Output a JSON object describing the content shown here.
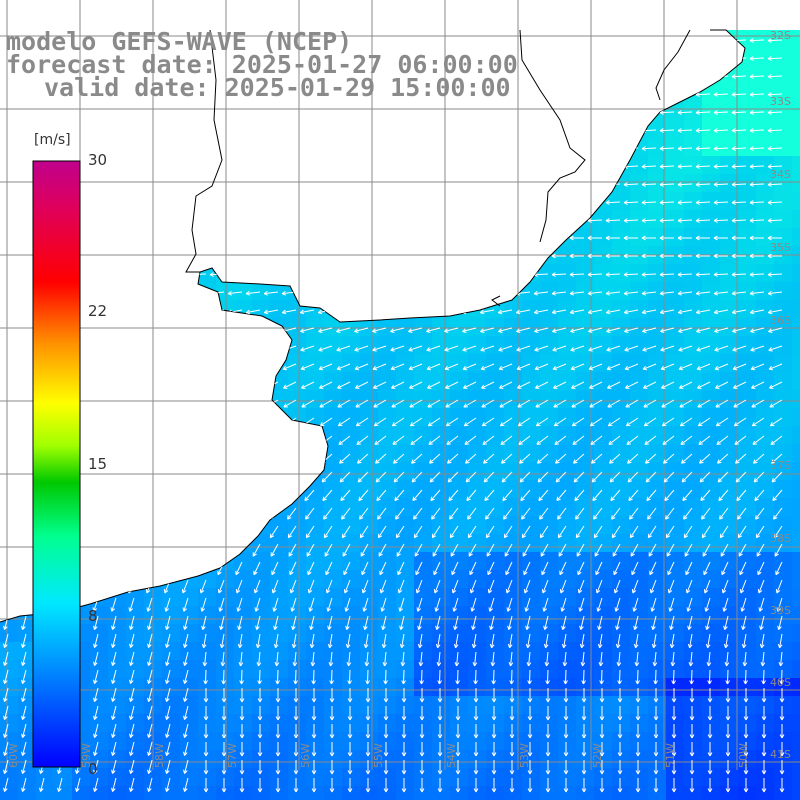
{
  "title": {
    "line1": "modelo GEFS-WAVE (NCEP)",
    "line2": "forecast date: 2025-01-27 06:00:00",
    "line3": "valid date: 2025-01-29 15:00:00"
  },
  "colorbar": {
    "unit": "[m/s]",
    "ticks": [
      "30",
      "22",
      "15",
      "8",
      "0"
    ],
    "range": [
      0,
      30
    ],
    "colors": [
      "#0000ff",
      "#0080ff",
      "#00e0ff",
      "#00ff80",
      "#00c000",
      "#ffff00",
      "#ff8000",
      "#ff0000",
      "#e00060",
      "#c0008a"
    ]
  },
  "grid": {
    "lat_labels": [
      "32S",
      "33S",
      "34S",
      "35S",
      "36S",
      "37S",
      "38S",
      "39S",
      "40S",
      "41S"
    ],
    "lon_labels": [
      "60W",
      "59W",
      "58W",
      "57W",
      "56W",
      "55W",
      "54W",
      "53W",
      "52W",
      "51W",
      "50W"
    ]
  },
  "colors": {
    "land": "#ffffff",
    "coast": "#000000",
    "gridline": "#8a8a8a",
    "arrow": "#ffffff"
  }
}
